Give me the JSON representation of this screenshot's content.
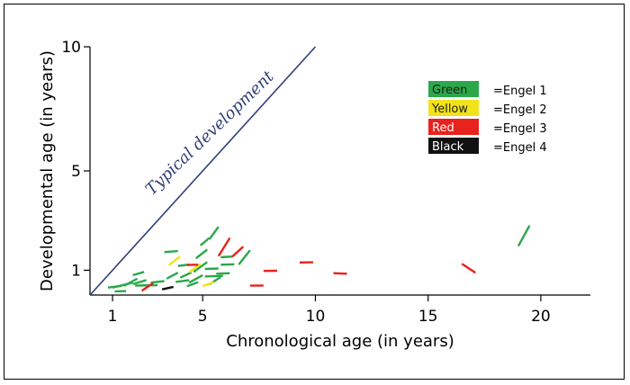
{
  "chart_data": {
    "type": "scatter",
    "title": "",
    "xlabel": "Chronological age (in years)",
    "ylabel": "Developmental age (in years)",
    "xlim": [
      0,
      22.2
    ],
    "ylim": [
      0,
      10
    ],
    "x_ticks": [
      1,
      5,
      10,
      15,
      20
    ],
    "x_tick_labels": [
      "1",
      "5",
      "10",
      "15",
      "20"
    ],
    "y_ticks": [
      1,
      5,
      10
    ],
    "y_tick_labels": [
      "1",
      "5",
      "10"
    ],
    "reference_line": {
      "label": "Typical development",
      "from": [
        0,
        0
      ],
      "to": [
        10,
        10
      ],
      "color": "#2f3f7a"
    },
    "legend": {
      "placement": "top-right",
      "entries": [
        {
          "swatch_label": "Green",
          "description": "=Engel 1",
          "color": "#2aa84a",
          "text_color": "#1f1f1f"
        },
        {
          "swatch_label": "Yellow",
          "description": "=Engel 2",
          "color": "#f2e21a",
          "text_color": "#1f1f1f"
        },
        {
          "swatch_label": "Red",
          "description": "=Engel 3",
          "color": "#e8221c",
          "text_color": "#ffffff"
        },
        {
          "swatch_label": "Black",
          "description": "=Engel 4",
          "color": "#111111",
          "text_color": "#ffffff"
        }
      ]
    },
    "series": [
      {
        "group": "Engel 1",
        "color": "#2aa84a",
        "segments": [
          [
            [
              0.8,
              0.3
            ],
            [
              1.4,
              0.37
            ]
          ],
          [
            [
              1.1,
              0.15
            ],
            [
              1.6,
              0.16
            ]
          ],
          [
            [
              1.0,
              0.3
            ],
            [
              1.9,
              0.5
            ]
          ],
          [
            [
              1.5,
              0.37
            ],
            [
              2.1,
              0.66
            ]
          ],
          [
            [
              1.9,
              0.8
            ],
            [
              2.4,
              0.93
            ]
          ],
          [
            [
              1.9,
              0.44
            ],
            [
              2.5,
              0.6
            ]
          ],
          [
            [
              2.0,
              0.38
            ],
            [
              3.0,
              0.4
            ]
          ],
          [
            [
              2.7,
              0.5
            ],
            [
              3.3,
              0.56
            ]
          ],
          [
            [
              3.3,
              1.73
            ],
            [
              3.9,
              1.77
            ]
          ],
          [
            [
              3.4,
              0.66
            ],
            [
              3.9,
              0.9
            ]
          ],
          [
            [
              3.8,
              0.53
            ],
            [
              4.4,
              0.6
            ]
          ],
          [
            [
              3.9,
              1.17
            ],
            [
              4.4,
              1.23
            ]
          ],
          [
            [
              4.0,
              0.7
            ],
            [
              4.5,
              0.91
            ]
          ],
          [
            [
              4.3,
              0.35
            ],
            [
              4.8,
              0.52
            ]
          ],
          [
            [
              4.4,
              0.5
            ],
            [
              5.0,
              0.8
            ]
          ],
          [
            [
              4.6,
              0.93
            ],
            [
              5.2,
              1.33
            ]
          ],
          [
            [
              4.7,
              1.48
            ],
            [
              5.2,
              1.83
            ]
          ],
          [
            [
              4.9,
              2.0
            ],
            [
              5.3,
              2.3
            ]
          ],
          [
            [
              5.1,
              1.05
            ],
            [
              5.7,
              1.07
            ]
          ],
          [
            [
              5.1,
              0.75
            ],
            [
              5.9,
              0.77
            ]
          ],
          [
            [
              5.3,
              0.43
            ],
            [
              5.8,
              0.73
            ]
          ],
          [
            [
              5.3,
              2.25
            ],
            [
              5.7,
              2.75
            ]
          ],
          [
            [
              5.8,
              1.52
            ],
            [
              6.3,
              1.55
            ]
          ],
          [
            [
              5.6,
              0.86
            ],
            [
              6.2,
              0.88
            ]
          ],
          [
            [
              5.8,
              1.22
            ],
            [
              6.4,
              1.24
            ]
          ],
          [
            [
              6.6,
              1.23
            ],
            [
              7.1,
              1.8
            ]
          ],
          [
            [
              19.0,
              1.97
            ],
            [
              19.5,
              2.8
            ]
          ]
        ]
      },
      {
        "group": "Engel 2",
        "color": "#f2e21a",
        "segments": [
          [
            [
              3.5,
              1.21
            ],
            [
              4.0,
              1.55
            ]
          ],
          [
            [
              4.4,
              0.92
            ],
            [
              4.9,
              1.25
            ]
          ],
          [
            [
              5.0,
              0.36
            ],
            [
              5.5,
              0.52
            ]
          ]
        ]
      },
      {
        "group": "Engel 3",
        "color": "#e8221c",
        "segments": [
          [
            [
              2.3,
              0.17
            ],
            [
              2.8,
              0.48
            ]
          ],
          [
            [
              4.3,
              1.21
            ],
            [
              4.8,
              1.22
            ]
          ],
          [
            [
              5.7,
              1.57
            ],
            [
              6.2,
              2.3
            ]
          ],
          [
            [
              6.3,
              1.54
            ],
            [
              6.8,
              1.95
            ]
          ],
          [
            [
              7.1,
              0.38
            ],
            [
              7.7,
              0.38
            ]
          ],
          [
            [
              7.7,
              0.97
            ],
            [
              8.3,
              0.98
            ]
          ],
          [
            [
              9.3,
              1.31
            ],
            [
              9.9,
              1.32
            ]
          ],
          [
            [
              10.8,
              0.88
            ],
            [
              11.4,
              0.86
            ]
          ],
          [
            [
              16.5,
              1.26
            ],
            [
              17.1,
              0.9
            ]
          ]
        ]
      },
      {
        "group": "Engel 4",
        "color": "#111111",
        "segments": [
          [
            [
              3.2,
              0.23
            ],
            [
              3.7,
              0.33
            ]
          ]
        ]
      }
    ]
  }
}
